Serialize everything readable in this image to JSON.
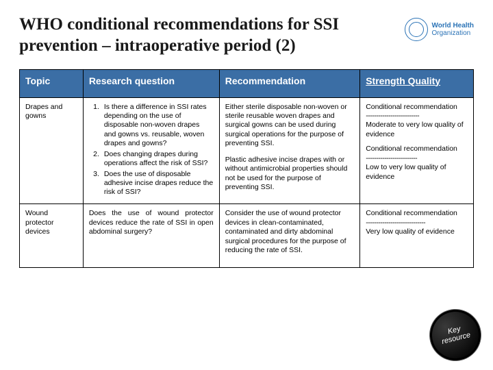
{
  "title": "WHO conditional recommendations for SSI prevention – intraoperative period (2)",
  "logo": {
    "line1": "World Health",
    "line2": "Organization"
  },
  "table": {
    "columns": [
      "Topic",
      "Research question",
      "Recommendation",
      "Strength Quality"
    ],
    "rows": [
      {
        "topic": "Drapes and gowns",
        "rq_type": "list",
        "rq": [
          "Is there a difference in SSI rates depending on the use of disposable non-woven drapes and gowns vs. reusable, woven drapes and gowns?",
          "Does changing drapes during operations affect the risk of SSI?",
          "Does the use of disposable adhesive incise drapes reduce the risk of SSI?"
        ],
        "rec": [
          "Either sterile disposable non-woven or sterile reusable woven drapes and surgical gowns can be used during surgical operations for the purpose of preventing SSI.",
          "Plastic adhesive incise drapes with or without antimicrobial properties should not be used for the purpose of preventing SSI."
        ],
        "sq": [
          {
            "label": "Conditional recommendation",
            "divider": "--------------------------",
            "quality": "Moderate to very low quality of evidence"
          },
          {
            "label": "Conditional recommendation",
            "divider": "-------------------------",
            "quality": "Low to very low quality of evidence"
          }
        ]
      },
      {
        "topic": "Wound protector devices",
        "rq_type": "text",
        "rq_text": "Does the use of wound protector devices reduce the rate of SSI in open abdominal surgery?",
        "rec": [
          "Consider the use of wound protector devices in clean-contaminated, contaminated and dirty abdominal surgical procedures for the purpose of reducing the rate of SSI."
        ],
        "sq": [
          {
            "label": "Conditional recommendation",
            "divider": "-----------------------------",
            "quality": "Very low quality of evidence"
          }
        ]
      }
    ]
  },
  "badge": {
    "line1": "Key",
    "line2": "resource"
  },
  "colors": {
    "header_bg": "#3b6ea5",
    "header_fg": "#ffffff",
    "border": "#000000",
    "logo": "#2b73b6"
  }
}
